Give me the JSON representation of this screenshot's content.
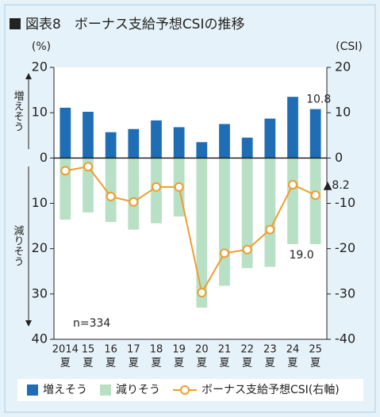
{
  "chart_data": {
    "type": "bar-line",
    "title": "図表8　ボーナス支給予想CSIの推移",
    "y_unit": "(%)",
    "y2_unit": "(CSI)",
    "annotation": "n=334",
    "categories": [
      [
        "2014",
        "夏"
      ],
      [
        "15",
        "夏"
      ],
      [
        "16",
        "夏"
      ],
      [
        "17",
        "夏"
      ],
      [
        "18",
        "夏"
      ],
      [
        "19",
        "夏"
      ],
      [
        "20",
        "夏"
      ],
      [
        "21",
        "夏"
      ],
      [
        "22",
        "夏"
      ],
      [
        "23",
        "夏"
      ],
      [
        "24",
        "夏"
      ],
      [
        "25",
        "夏"
      ]
    ],
    "ylim": [
      -40,
      20
    ],
    "yticks": [
      20,
      10,
      0,
      {
        "value": -10,
        "label": "10"
      },
      {
        "value": -20,
        "label": "20"
      },
      {
        "value": -30,
        "label": "30"
      },
      {
        "value": -40,
        "label": "40"
      }
    ],
    "y2lim": [
      -40,
      20
    ],
    "y2ticks": [
      20,
      10,
      0,
      -10,
      -20,
      -30,
      -40
    ],
    "series": [
      {
        "name": "増えそう",
        "type": "bar",
        "color": "#1f6db4",
        "values": [
          11.1,
          10.2,
          5.7,
          6.4,
          8.3,
          6.8,
          3.5,
          7.5,
          4.5,
          8.7,
          13.5,
          10.8
        ],
        "value_labels": [
          null,
          null,
          null,
          null,
          null,
          null,
          null,
          null,
          null,
          null,
          null,
          "10.8"
        ]
      },
      {
        "name": "減りそう",
        "type": "bar",
        "color": "#b8e0c4",
        "values": [
          -13.6,
          -12.0,
          -14.1,
          -15.8,
          -14.4,
          -12.9,
          -33.0,
          -28.2,
          -24.3,
          -24.0,
          -19.0,
          -19.0
        ],
        "value_labels": [
          null,
          null,
          null,
          null,
          null,
          null,
          null,
          null,
          null,
          null,
          null,
          "19.0"
        ]
      },
      {
        "name": "ボーナス支給予想CSI(右軸)",
        "type": "line",
        "axis": "y2",
        "color": "#ef9d2e",
        "values": [
          -2.8,
          -1.9,
          -8.5,
          -9.7,
          -6.4,
          -6.4,
          -29.7,
          -21.0,
          -20.2,
          -15.8,
          -5.9,
          -8.2
        ],
        "value_labels": [
          null,
          null,
          null,
          null,
          null,
          null,
          null,
          null,
          null,
          null,
          null,
          "▲8.2"
        ]
      }
    ]
  }
}
